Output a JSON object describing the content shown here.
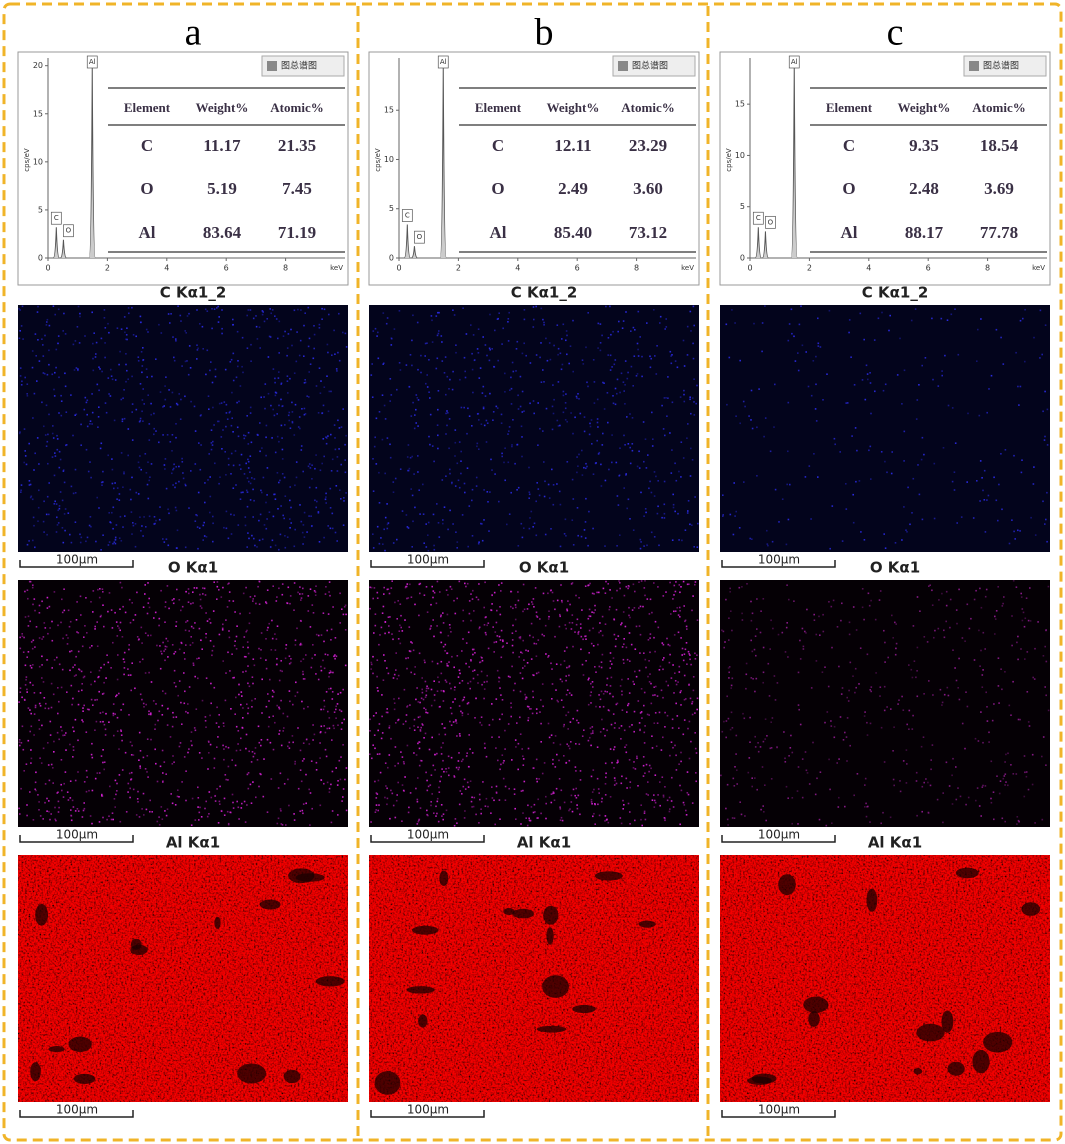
{
  "panels": [
    {
      "label": "a",
      "spectrum": {
        "y_label": "cps/eV",
        "x_unit": "keV",
        "legend": "图总谱图",
        "xlim": [
          0,
          10
        ],
        "xticks": [
          0,
          2,
          4,
          6,
          8
        ],
        "ylim": [
          0,
          20.8
        ],
        "yticks": [
          0,
          5,
          10,
          15,
          20
        ],
        "peaks": [
          {
            "label": "C",
            "x": 0.28,
            "height": 3.2
          },
          {
            "label": "O",
            "x": 0.52,
            "height": 1.9
          },
          {
            "label": "Al",
            "x": 1.49,
            "height": 20
          }
        ]
      },
      "table": {
        "headers": [
          "Element",
          "Weight%",
          "Atomic%"
        ],
        "rows": [
          [
            "C",
            "11.17",
            "21.35"
          ],
          [
            "O",
            "5.19",
            "7.45"
          ],
          [
            "Al",
            "83.64",
            "71.19"
          ]
        ]
      },
      "maps": [
        {
          "title": "C Kα1_2",
          "scale": "100μm"
        },
        {
          "title": "O Kα1",
          "scale": "100μm"
        },
        {
          "title": "Al Kα1",
          "scale": "100μm"
        }
      ]
    },
    {
      "label": "b",
      "spectrum": {
        "y_label": "cps/eV",
        "x_unit": "keV",
        "legend": "图总谱图",
        "xlim": [
          0,
          10
        ],
        "xticks": [
          0,
          2,
          4,
          6,
          8
        ],
        "ylim": [
          0,
          20.3
        ],
        "yticks": [
          0,
          5,
          10,
          15
        ],
        "peaks": [
          {
            "label": "C",
            "x": 0.28,
            "height": 3.4
          },
          {
            "label": "O",
            "x": 0.52,
            "height": 1.2
          },
          {
            "label": "Al",
            "x": 1.49,
            "height": 19.5
          }
        ]
      },
      "table": {
        "headers": [
          "Element",
          "Weight%",
          "Atomic%"
        ],
        "rows": [
          [
            "C",
            "12.11",
            "23.29"
          ],
          [
            "O",
            "2.49",
            "3.60"
          ],
          [
            "Al",
            "85.40",
            "73.12"
          ]
        ]
      },
      "maps": [
        {
          "title": "C Kα1_2",
          "scale": "100μm"
        },
        {
          "title": "O Kα1",
          "scale": "100μm"
        },
        {
          "title": "Al Kα1",
          "scale": "100μm"
        }
      ]
    },
    {
      "label": "c",
      "spectrum": {
        "y_label": "cps/eV",
        "x_unit": "keV",
        "legend": "图总谱图",
        "xlim": [
          0,
          10
        ],
        "xticks": [
          0,
          2,
          4,
          6,
          8
        ],
        "ylim": [
          0,
          19.5
        ],
        "yticks": [
          0,
          5,
          10,
          15
        ],
        "peaks": [
          {
            "label": "C",
            "x": 0.28,
            "height": 3
          },
          {
            "label": "O",
            "x": 0.52,
            "height": 2.6
          },
          {
            "label": "Al",
            "x": 1.49,
            "height": 19
          }
        ]
      },
      "table": {
        "headers": [
          "Element",
          "Weight%",
          "Atomic%"
        ],
        "rows": [
          [
            "C",
            "9.35",
            "18.54"
          ],
          [
            "O",
            "2.48",
            "3.69"
          ],
          [
            "Al",
            "88.17",
            "77.78"
          ]
        ]
      },
      "maps": [
        {
          "title": "C Kα1_2",
          "scale": "100μm"
        },
        {
          "title": "O Kα1",
          "scale": "100μm"
        },
        {
          "title": "Al Kα1",
          "scale": "100μm"
        }
      ]
    }
  ]
}
